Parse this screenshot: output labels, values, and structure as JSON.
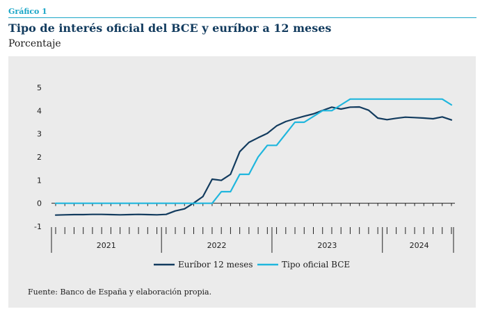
{
  "header": {
    "kicker": "Gráfico 1",
    "title": "Tipo de interés oficial del BCE y euríbor a 12 meses",
    "subtitle": "Porcentaje"
  },
  "footer": {
    "source": "Fuente: Banco de España y elaboración propia."
  },
  "colors": {
    "accent": "#1aa6c7",
    "title": "#123b5e",
    "euribor": "#123b5e",
    "bce": "#1fb6dd",
    "panel_bg": "#ebebeb"
  },
  "chart_data": {
    "type": "line",
    "title": "Tipo de interés oficial del BCE y euríbor a 12 meses",
    "ylabel": "Porcentaje",
    "ylim": [
      -1,
      5
    ],
    "yticks": [
      -1,
      0,
      1,
      2,
      3,
      4,
      5
    ],
    "year_labels": [
      "2021",
      "2022",
      "2023",
      "2024"
    ],
    "year_month_counts": [
      12,
      12,
      12,
      8
    ],
    "x": [
      "2021-01",
      "2021-02",
      "2021-03",
      "2021-04",
      "2021-05",
      "2021-06",
      "2021-07",
      "2021-08",
      "2021-09",
      "2021-10",
      "2021-11",
      "2021-12",
      "2022-01",
      "2022-02",
      "2022-03",
      "2022-04",
      "2022-05",
      "2022-06",
      "2022-07",
      "2022-08",
      "2022-09",
      "2022-10",
      "2022-11",
      "2022-12",
      "2023-01",
      "2023-02",
      "2023-03",
      "2023-04",
      "2023-05",
      "2023-06",
      "2023-07",
      "2023-08",
      "2023-09",
      "2023-10",
      "2023-11",
      "2023-12",
      "2024-01",
      "2024-02",
      "2024-03",
      "2024-04",
      "2024-05",
      "2024-06",
      "2024-07",
      "2024-08"
    ],
    "series": [
      {
        "name": "Euríbor 12 meses",
        "values": [
          -0.51,
          -0.5,
          -0.49,
          -0.49,
          -0.48,
          -0.48,
          -0.49,
          -0.5,
          -0.49,
          -0.48,
          -0.49,
          -0.5,
          -0.48,
          -0.33,
          -0.24,
          0.01,
          0.29,
          1.04,
          0.99,
          1.25,
          2.23,
          2.63,
          2.83,
          3.02,
          3.34,
          3.53,
          3.65,
          3.76,
          3.86,
          4.01,
          4.15,
          4.07,
          4.15,
          4.16,
          4.02,
          3.68,
          3.61,
          3.67,
          3.72,
          3.7,
          3.68,
          3.65,
          3.73,
          3.6
        ],
        "color": "#123b5e"
      },
      {
        "name": "Tipo oficial BCE",
        "values": [
          0,
          0,
          0,
          0,
          0,
          0,
          0,
          0,
          0,
          0,
          0,
          0,
          0,
          0,
          0,
          0,
          0,
          0,
          0.5,
          0.5,
          1.25,
          1.25,
          2.0,
          2.5,
          2.5,
          3.0,
          3.5,
          3.5,
          3.75,
          4.0,
          4.0,
          4.25,
          4.5,
          4.5,
          4.5,
          4.5,
          4.5,
          4.5,
          4.5,
          4.5,
          4.5,
          4.5,
          4.5,
          4.25
        ],
        "color": "#1fb6dd"
      }
    ],
    "grid": false,
    "legend_position": "bottom-center"
  }
}
